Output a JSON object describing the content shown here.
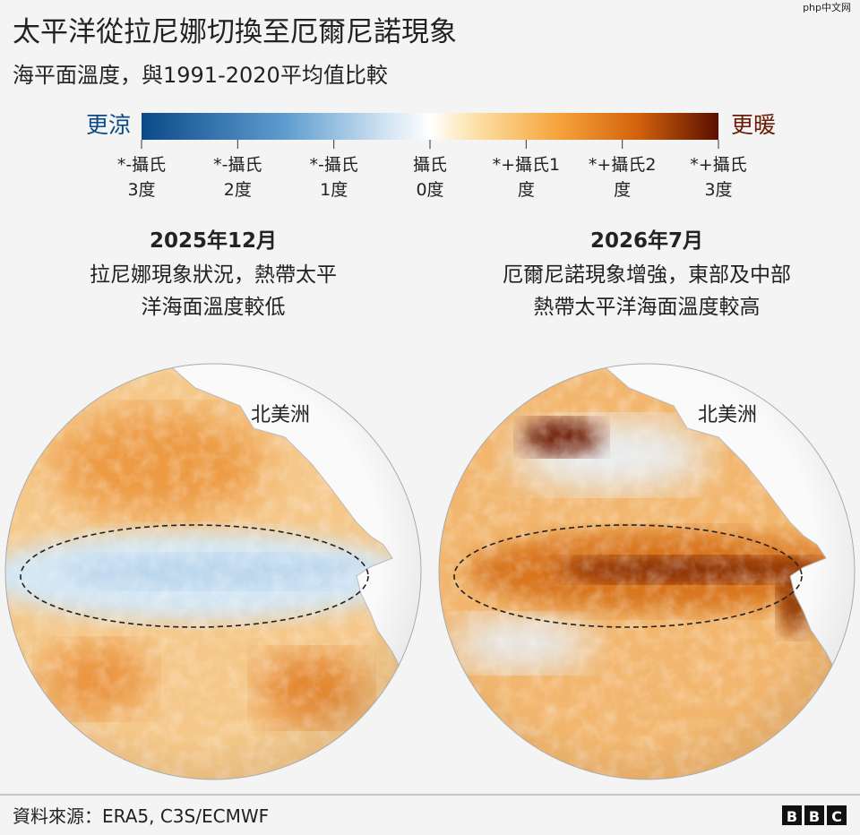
{
  "header": {
    "title": "太平洋從拉尼娜切換至厄爾尼諾現象",
    "subtitle": "海平面溫度，與1991-2020平均值比較",
    "watermark": "php中文网"
  },
  "legend": {
    "cool": "更涼",
    "warm": "更暖",
    "ticks": [
      [
        "*-攝氏",
        "3度"
      ],
      [
        "*-攝氏",
        "2度"
      ],
      [
        "*-攝氏",
        "1度"
      ],
      [
        "攝氏",
        "0度"
      ],
      [
        "*+攝氏1",
        "度"
      ],
      [
        "*+攝氏2",
        "度"
      ],
      [
        "*+攝氏",
        "3度"
      ]
    ]
  },
  "panels": [
    {
      "date": "2025年12月",
      "caption": [
        "拉尼娜現象狀況，熱帶太平",
        "洋海面溫度較低"
      ],
      "map_label": "北美洲"
    },
    {
      "date": "2026年7月",
      "caption": [
        "厄爾尼諾現象增強，東部及中部",
        "熱帶太平洋海面溫度較高"
      ],
      "map_label": "北美洲"
    }
  ],
  "footer": {
    "source": "資料來源：ERA5, C3S/ECMWF",
    "logo": [
      "B",
      "B",
      "C"
    ]
  }
}
